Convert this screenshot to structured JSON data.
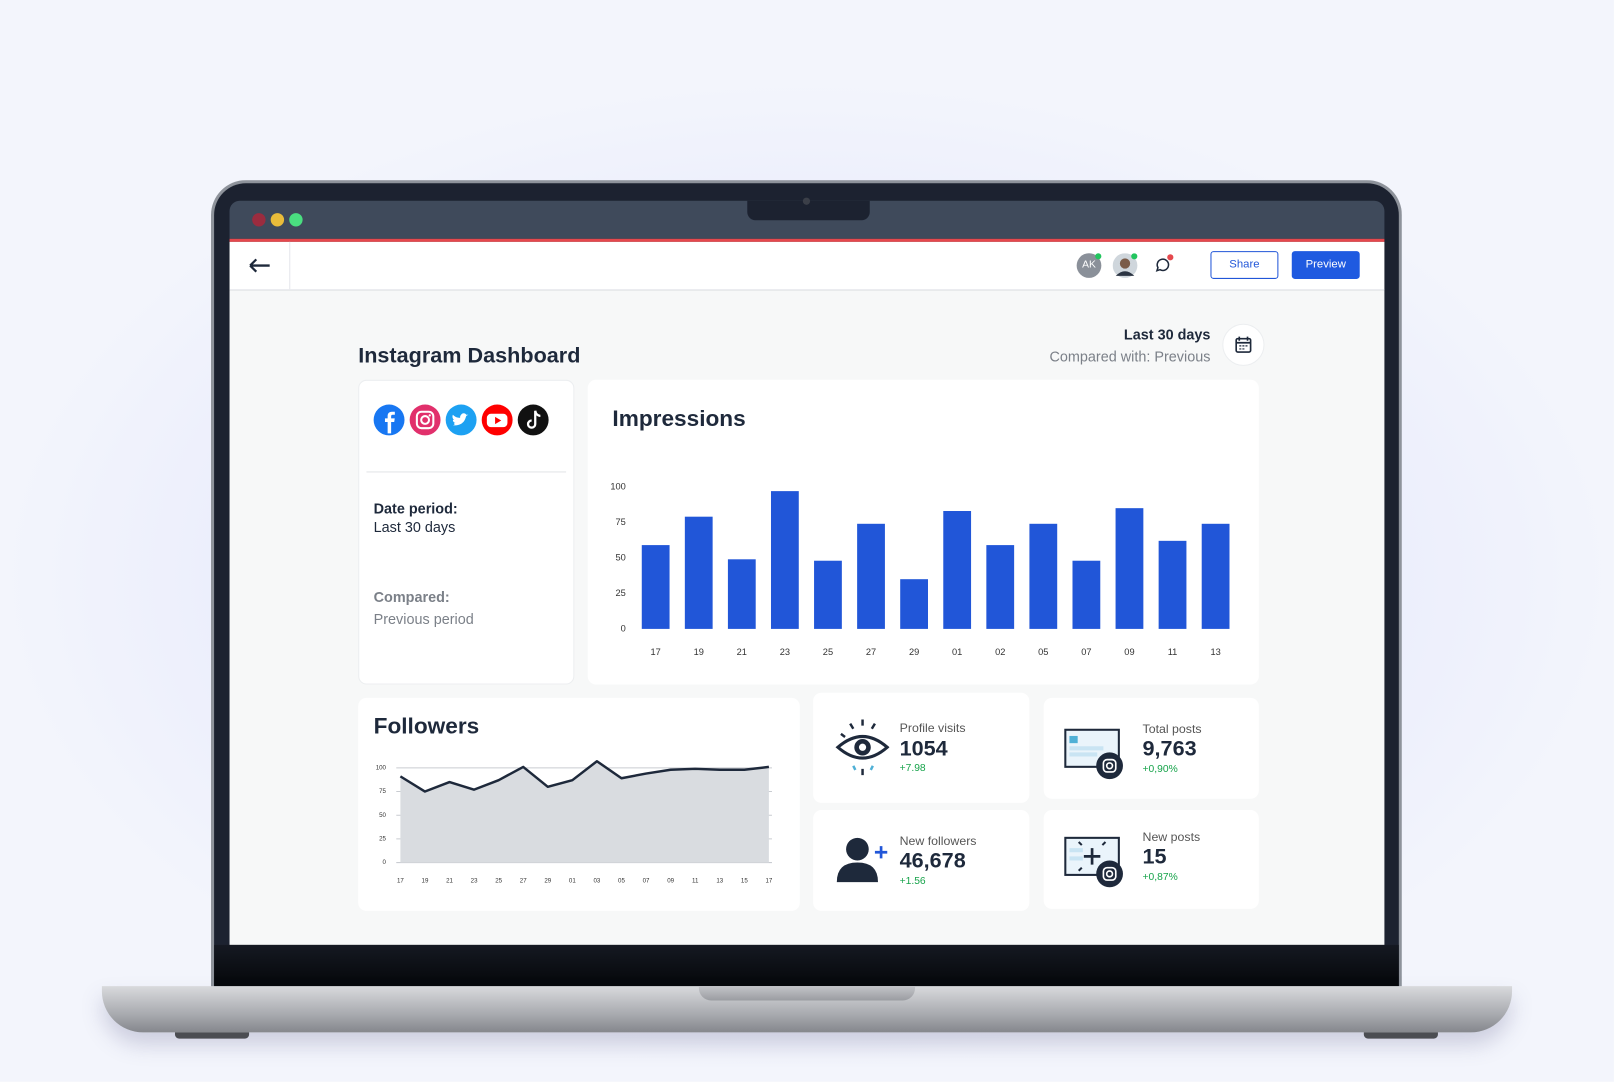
{
  "header": {
    "avatar_initials": "AK",
    "share_button": "Share",
    "preview_button": "Preview"
  },
  "dashboard": {
    "title": "Instagram Dashboard",
    "period": "Last 30 days",
    "comparison": "Compared with: Previous"
  },
  "info_card": {
    "date_label": "Date period:",
    "date_value": "Last 30 days",
    "compared_label": "Compared:",
    "compared_value": "Previous period"
  },
  "chart_data": [
    {
      "type": "bar",
      "title": "Impressions",
      "categories": [
        "17",
        "19",
        "21",
        "23",
        "25",
        "27",
        "29",
        "01",
        "02",
        "05",
        "07",
        "09",
        "11",
        "13"
      ],
      "values": [
        59,
        79,
        49,
        97,
        48,
        74,
        35,
        83,
        59,
        74,
        48,
        85,
        62,
        74
      ],
      "color": "#2156d8",
      "ylim": [
        0,
        100
      ],
      "yticks": [
        0,
        25,
        50,
        75,
        100
      ],
      "grid": false
    },
    {
      "type": "area",
      "title": "Followers",
      "categories": [
        "17",
        "19",
        "21",
        "23",
        "25",
        "27",
        "29",
        "01",
        "03",
        "05",
        "07",
        "09",
        "11",
        "13",
        "15",
        "17"
      ],
      "values": [
        91,
        75,
        85,
        77,
        87,
        101,
        80,
        87,
        107,
        89,
        94,
        98,
        99,
        98,
        98,
        101
      ],
      "color": "#1e293b",
      "fill": "#d9dce0",
      "ylim": [
        0,
        100
      ],
      "yticks": [
        0,
        25,
        50,
        75,
        100
      ],
      "grid": true
    }
  ],
  "stats": [
    {
      "label": "Profile visits",
      "value": "1054",
      "change": "+7.98"
    },
    {
      "label": "Total posts",
      "value": "9,763",
      "change": "+0,90%"
    },
    {
      "label": "New followers",
      "value": "46,678",
      "change": "+1.56"
    },
    {
      "label": "New posts",
      "value": "15",
      "change": "+0,87%"
    }
  ]
}
